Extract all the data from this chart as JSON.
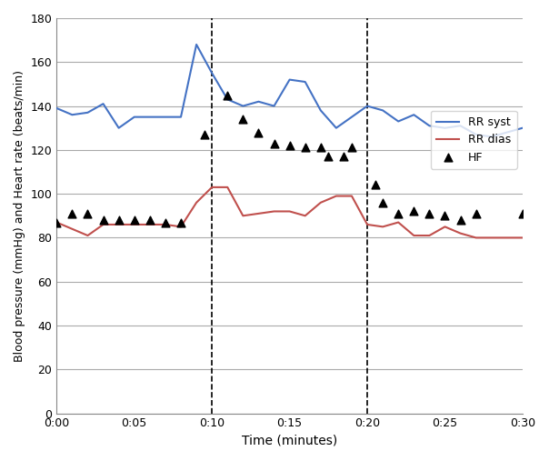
{
  "rr_syst_x_vals": [
    0,
    1,
    2,
    3,
    4,
    5,
    6,
    7,
    8,
    9,
    10,
    11,
    12,
    13,
    14,
    15,
    16,
    17,
    18,
    20,
    21,
    22,
    23,
    24,
    25,
    26,
    27,
    28,
    30
  ],
  "rr_syst_y": [
    139,
    136,
    137,
    141,
    130,
    135,
    135,
    135,
    135,
    168,
    155,
    143,
    140,
    142,
    140,
    152,
    151,
    138,
    130,
    140,
    138,
    133,
    136,
    131,
    130,
    131,
    127,
    126,
    130
  ],
  "rr_dias_x_vals": [
    0,
    1,
    2,
    3,
    4,
    5,
    6,
    7,
    8,
    9,
    10,
    11,
    12,
    13,
    14,
    15,
    16,
    17,
    18,
    19,
    20,
    21,
    22,
    23,
    24,
    25,
    26,
    27,
    30
  ],
  "rr_dias_y": [
    87,
    84,
    81,
    86,
    86,
    86,
    86,
    86,
    85,
    96,
    103,
    103,
    90,
    91,
    92,
    92,
    90,
    96,
    99,
    99,
    86,
    85,
    87,
    81,
    81,
    85,
    82,
    80,
    80
  ],
  "hf_x": [
    0,
    1,
    2,
    3,
    4,
    5,
    6,
    7,
    8,
    9.5,
    11,
    12,
    13,
    14,
    15,
    16,
    17,
    17.5,
    18.5,
    19,
    20.5,
    21,
    22,
    23,
    24,
    25,
    26,
    27,
    30
  ],
  "hf_y": [
    87,
    91,
    91,
    88,
    88,
    88,
    88,
    87,
    87,
    127,
    145,
    134,
    128,
    123,
    122,
    121,
    121,
    117,
    117,
    121,
    104,
    96,
    91,
    92,
    91,
    90,
    88,
    91,
    91
  ],
  "vline_x": [
    10,
    20
  ],
  "ylim": [
    0,
    180
  ],
  "xlim": [
    0,
    30
  ],
  "yticks": [
    0,
    20,
    40,
    60,
    80,
    100,
    120,
    140,
    160,
    180
  ],
  "xtick_vals": [
    0,
    5,
    10,
    15,
    20,
    25,
    30
  ],
  "xtick_labels": [
    "0:00",
    "0:05",
    "0:10",
    "0:15",
    "0:20",
    "0:25",
    "0:30"
  ],
  "xlabel": "Time (minutes)",
  "ylabel": "Blood pressure (mmHg) and Heart rate (beats/min)",
  "syst_color": "#4472C4",
  "dias_color": "#C0504D",
  "hf_color": "#000000",
  "legend_labels": [
    "RR syst",
    "RR dias",
    "HF"
  ],
  "bg_color": "#FFFFFF"
}
